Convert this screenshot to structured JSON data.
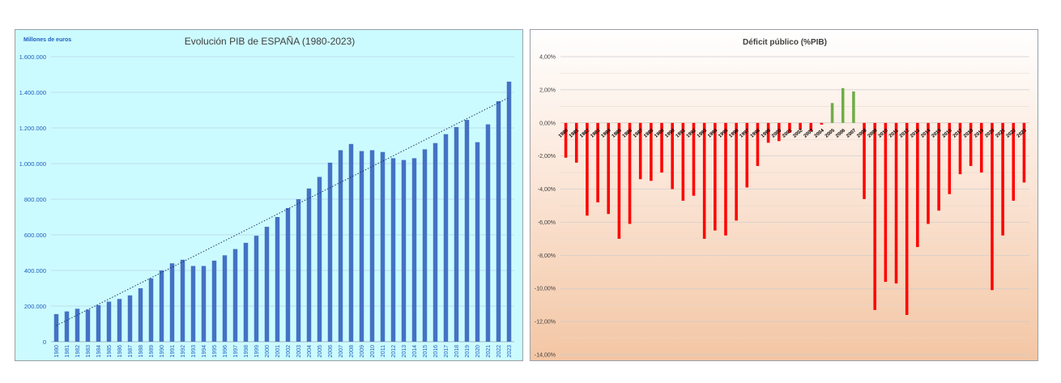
{
  "charts": [
    {
      "id": "gdp",
      "chart_data": {
        "type": "bar",
        "title": "Evolución PIB de ESPAÑA (1980-2023)",
        "unit_label": "Millones de euros",
        "ylim": [
          0,
          1600000
        ],
        "yticks": [
          0,
          200000,
          400000,
          600000,
          800000,
          1000000,
          1200000,
          1400000,
          1600000
        ],
        "ytick_labels": [
          "0",
          "200.000",
          "400.000",
          "600.000",
          "800.000",
          "1.000.000",
          "1.200.000",
          "1.400.000",
          "1.600.000"
        ],
        "grid": true,
        "trendline": "linear",
        "categories": [
          "1980",
          "1981",
          "1982",
          "1983",
          "1984",
          "1985",
          "1986",
          "1987",
          "1988",
          "1989",
          "1990",
          "1991",
          "1992",
          "1993",
          "1994",
          "1995",
          "1996",
          "1997",
          "1998",
          "1999",
          "2000",
          "2001",
          "2002",
          "2003",
          "2004",
          "2005",
          "2006",
          "2007",
          "2008",
          "2009",
          "2010",
          "2011",
          "2012",
          "2013",
          "2014",
          "2015",
          "2016",
          "2017",
          "2018",
          "2019",
          "2020",
          "2021",
          "2022",
          "2023"
        ],
        "values": [
          155000,
          170000,
          185000,
          180000,
          205000,
          225000,
          240000,
          260000,
          300000,
          355000,
          400000,
          440000,
          460000,
          425000,
          425000,
          455000,
          485000,
          520000,
          555000,
          595000,
          645000,
          700000,
          750000,
          800000,
          860000,
          925000,
          1005000,
          1075000,
          1110000,
          1070000,
          1075000,
          1065000,
          1030000,
          1020000,
          1030000,
          1080000,
          1115000,
          1165000,
          1205000,
          1245000,
          1120000,
          1220000,
          1350000,
          1460000
        ],
        "colors": {
          "bar": "#4472c4",
          "trend": "#1f3864",
          "grid": "#b8d2e8",
          "background": "#ccfbff"
        }
      }
    },
    {
      "id": "deficit",
      "chart_data": {
        "type": "bar",
        "title": "Déficit público (%PIB)",
        "ylim": [
          -14,
          4
        ],
        "yticks": [
          4,
          2,
          0,
          -2,
          -4,
          -6,
          -8,
          -10,
          -12,
          -14
        ],
        "ytick_labels": [
          "4,00%",
          "2,00%",
          "0,00%",
          "-2,00%",
          "-4,00%",
          "-6,00%",
          "-8,00%",
          "-10,00%",
          "-12,00%",
          "-14,00%"
        ],
        "grid": true,
        "categories": [
          "1980",
          "1981",
          "1982",
          "1983",
          "1984",
          "1985",
          "1986",
          "1987",
          "1988",
          "1989",
          "1990",
          "1991",
          "1992",
          "1993",
          "1994",
          "1995",
          "1996",
          "1997",
          "1998",
          "1999",
          "2000",
          "2001",
          "2002",
          "2003",
          "2004",
          "2005",
          "2006",
          "2007",
          "2008",
          "2009",
          "2010",
          "2011",
          "2012",
          "2013",
          "2014",
          "2015",
          "2016",
          "2017",
          "2018",
          "2019",
          "2020",
          "2021",
          "2022",
          "2023"
        ],
        "tick_labels": [
          "1980",
          "1981",
          "1982",
          "1983",
          "1984",
          "1985",
          "1986",
          "1987",
          "1988",
          "1989",
          "1990",
          "1991",
          "1992",
          "1993",
          "1994",
          "1995",
          "1996",
          "1997",
          "1998",
          "1999",
          "2000",
          "2001",
          "2002",
          "2003",
          "2004",
          "2005",
          "2006",
          "2007",
          "2008",
          "2009",
          "2010",
          "2011",
          "2012",
          "2013",
          "2014",
          "2015",
          "2016",
          "2017",
          "2018",
          "2019",
          "2020",
          "2021",
          "2022",
          "2023"
        ],
        "values": [
          -2.1,
          -2.4,
          -5.6,
          -4.8,
          -5.5,
          -7.0,
          -6.1,
          -3.4,
          -3.5,
          -3.0,
          -4.0,
          -4.7,
          -4.4,
          -7.0,
          -6.5,
          -6.8,
          -5.9,
          -3.9,
          -2.6,
          -1.2,
          -1.1,
          -0.6,
          -0.4,
          -0.5,
          -0.1,
          1.2,
          2.1,
          1.9,
          -4.6,
          -11.3,
          -9.6,
          -9.7,
          -11.6,
          -7.5,
          -6.1,
          -5.3,
          -4.3,
          -3.1,
          -2.6,
          -3.0,
          -10.1,
          -6.8,
          -4.7,
          -3.6
        ],
        "colors": {
          "negative": "#ff0000",
          "positive": "#70ad47",
          "grid": "#cccccc"
        }
      }
    }
  ]
}
